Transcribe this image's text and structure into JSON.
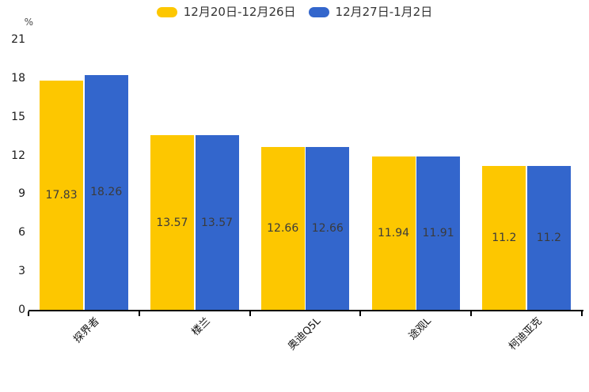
{
  "chart_data": {
    "type": "bar",
    "title": "",
    "unit_label": "%",
    "categories": [
      "探界者",
      "楼兰",
      "奥迪Q5L",
      "途观L",
      "柯迪亚克"
    ],
    "series": [
      {
        "name": "12月20日-12月26日",
        "color": "#FDC700",
        "values": [
          17.83,
          13.57,
          12.66,
          11.94,
          11.2
        ]
      },
      {
        "name": "12月27日-1月2日",
        "color": "#3366CC",
        "values": [
          18.26,
          13.57,
          12.66,
          11.91,
          11.2
        ]
      }
    ],
    "ylim": [
      0,
      21
    ],
    "yticks": [
      0,
      3,
      6,
      9,
      12,
      15,
      18,
      21
    ],
    "grid": false,
    "legend_position": "top",
    "data_labels_shown": true,
    "label_color": "#3b3b3b",
    "axis_color": "#000000",
    "background_color": "#ffffff"
  }
}
